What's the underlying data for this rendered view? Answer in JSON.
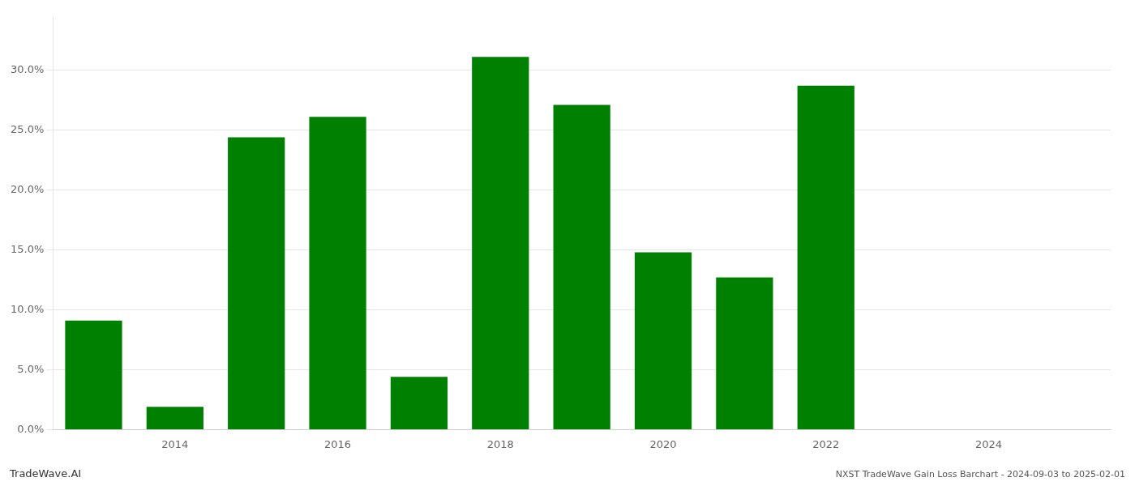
{
  "chart_data": {
    "type": "bar",
    "x": [
      2013,
      2014,
      2015,
      2016,
      2017,
      2018,
      2019,
      2020,
      2021,
      2022,
      2023
    ],
    "values": [
      0.091,
      0.019,
      0.244,
      0.261,
      0.044,
      0.311,
      0.271,
      0.148,
      0.127,
      0.287,
      0.0
    ],
    "color": "#008000",
    "xlim": [
      2012.5,
      2025.5
    ],
    "xticks": [
      2014,
      2016,
      2018,
      2020,
      2022,
      2024
    ],
    "ylim": [
      0.0,
      0.345
    ],
    "yticks": [
      {
        "value": 0.0,
        "label": "0.0%"
      },
      {
        "value": 0.05,
        "label": "5.0%"
      },
      {
        "value": 0.1,
        "label": "10.0%"
      },
      {
        "value": 0.15,
        "label": "15.0%"
      },
      {
        "value": 0.2,
        "label": "20.0%"
      },
      {
        "value": 0.25,
        "label": "25.0%"
      },
      {
        "value": 0.3,
        "label": "30.0%"
      }
    ],
    "grid": "y",
    "annotations": [
      "TradeWave.AI",
      "NXST TradeWave Gain Loss Barchart - 2024-09-03 to 2025-02-01"
    ]
  }
}
